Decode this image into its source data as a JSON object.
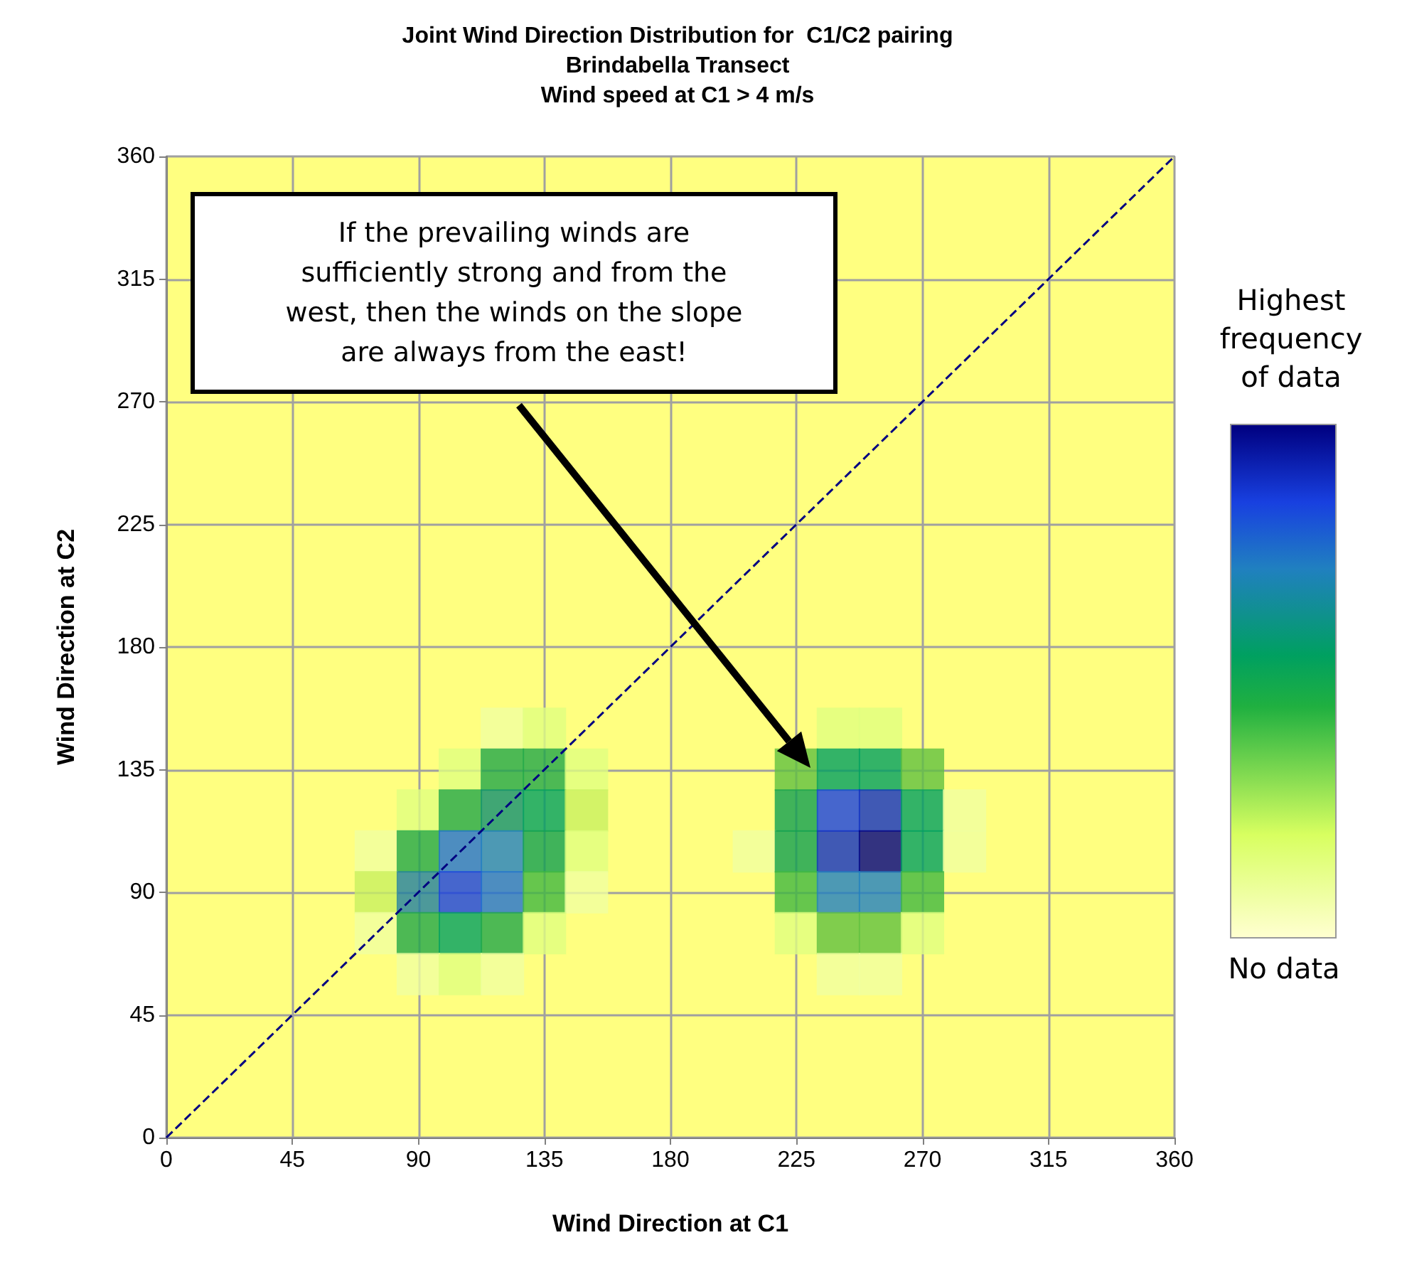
{
  "chart_data": {
    "type": "scatter",
    "title": "Joint Wind Direction Distribution for  C1/C2 pairing\nBrindabella Transect\nWind speed at C1 > 4 m/s",
    "xlabel": "Wind Direction at C1",
    "ylabel": "Wind Direction at C2",
    "xlim": [
      0,
      360
    ],
    "ylim": [
      0,
      360
    ],
    "xticks": [
      0,
      45,
      90,
      135,
      180,
      225,
      270,
      315,
      360
    ],
    "yticks": [
      0,
      45,
      90,
      135,
      180,
      225,
      270,
      315,
      360
    ],
    "grid": true,
    "marker": "square",
    "annotations": [
      "If the prevailing winds are sufficiently strong and from the west, then the winds on the slope are always from the east!",
      "Highest frequency of  data",
      "No data"
    ],
    "series": [
      {
        "x": [
          120,
          135,
          105,
          120,
          135,
          150,
          90,
          105,
          120,
          135,
          150,
          75,
          90,
          105,
          120,
          135,
          150,
          75,
          90,
          105,
          120,
          135,
          150,
          75,
          90,
          105,
          120,
          135,
          90,
          105,
          120,
          240,
          255,
          225,
          240,
          255,
          270,
          225,
          240,
          255,
          270,
          285,
          210,
          225,
          240,
          255,
          270,
          285,
          225,
          240,
          255,
          270,
          225,
          240,
          255,
          270,
          240,
          255
        ],
        "values": [
          150,
          150,
          135,
          135,
          135,
          135,
          120,
          120,
          120,
          120,
          120,
          105,
          105,
          105,
          105,
          105,
          105,
          90,
          90,
          90,
          90,
          90,
          90,
          75,
          75,
          75,
          75,
          75,
          60,
          60,
          60,
          150,
          150,
          135,
          135,
          135,
          135,
          120,
          120,
          120,
          120,
          120,
          105,
          105,
          105,
          105,
          105,
          105,
          90,
          90,
          90,
          90,
          75,
          75,
          75,
          75,
          60,
          60
        ],
        "colors": [
          "#f0ffa0",
          "#e0ff80",
          "#e0ff80",
          "#20a848",
          "#20a848",
          "#e0ff80",
          "#e0ff80",
          "#20a848",
          "#109070",
          "#00a060",
          "#c8f060",
          "#f0ffa0",
          "#20a848",
          "#2070d0",
          "#2080c0",
          "#10a050",
          "#e0ff80",
          "#c8f060",
          "#2080a0",
          "#1840e0",
          "#2070d0",
          "#40b840",
          "#f0ffa0",
          "#f0ffa0",
          "#20a848",
          "#00a060",
          "#20a848",
          "#e0ff80",
          "#f0ffa0",
          "#e0ff80",
          "#f0ffa0",
          "#e0ff80",
          "#e0ff80",
          "#60c040",
          "#00a060",
          "#00a060",
          "#60c040",
          "#10a050",
          "#1840e0",
          "#1030c0",
          "#00a060",
          "#f0ffa0",
          "#f0ffa0",
          "#10a050",
          "#1030c0",
          "#000080",
          "#00a060",
          "#f0ffa0",
          "#40b840",
          "#2080c0",
          "#2080c0",
          "#40b840",
          "#e0ff80",
          "#60c040",
          "#60c040",
          "#e0ff80",
          "#f0ffa0",
          "#f0ffa0"
        ]
      },
      {
        "type": "line",
        "x": [
          0,
          360
        ],
        "values": [
          0,
          360
        ],
        "color": "#000080",
        "line_style": "dashed",
        "marker": "none"
      }
    ]
  }
}
